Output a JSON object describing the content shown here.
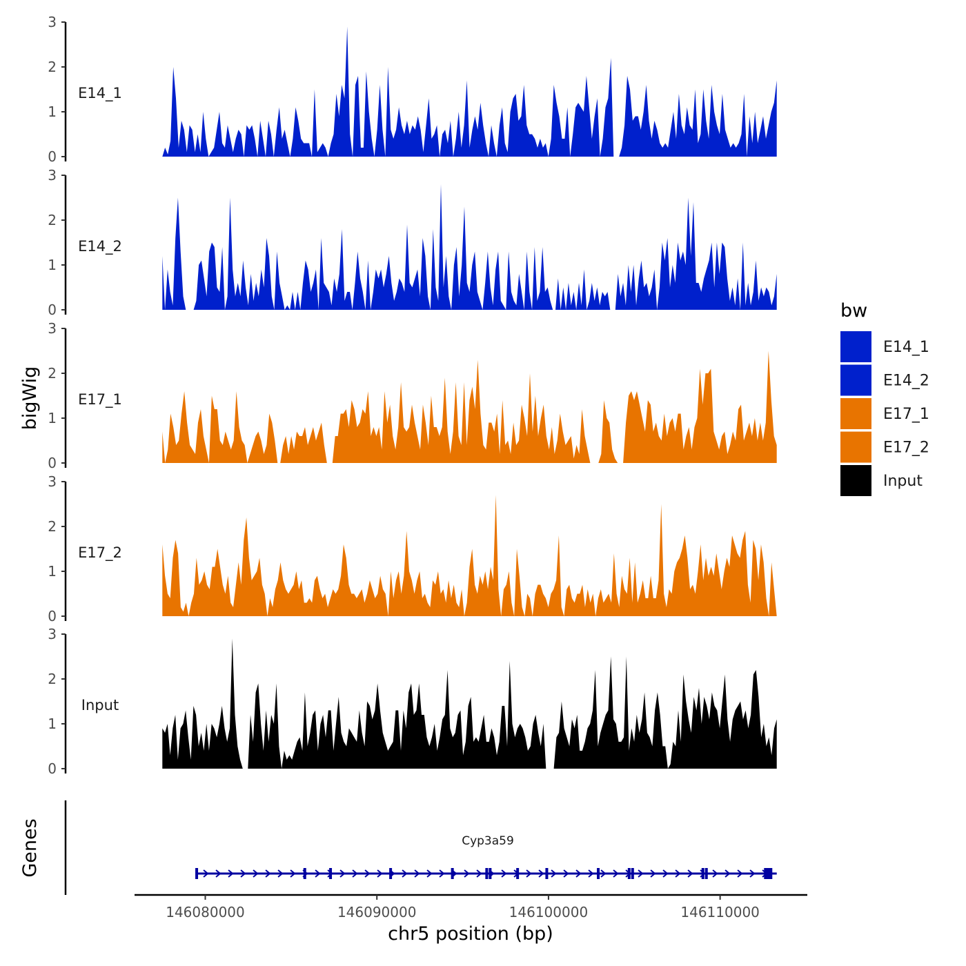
{
  "chart_data": {
    "type": "area",
    "title": "",
    "ylabel": "bigWig",
    "xlabel": "chr5 position (bp)",
    "genes_label": "Genes",
    "ylim": [
      0,
      3
    ],
    "yticks": [
      "0",
      "1",
      "2",
      "3"
    ],
    "xlim": [
      146076000,
      146115000
    ],
    "data_xrange": [
      146077500,
      146113300
    ],
    "xticks": [
      146080000,
      146090000,
      146100000,
      146110000
    ],
    "xtick_labels": [
      "146080000",
      "146090000",
      "146100000",
      "146110000"
    ],
    "legend": {
      "title": "bw",
      "placement": "right",
      "entries": [
        {
          "name": "E14_1",
          "color": "#0020CC"
        },
        {
          "name": "E14_2",
          "color": "#0020CC"
        },
        {
          "name": "E17_1",
          "color": "#E87400"
        },
        {
          "name": "E17_2",
          "color": "#E87400"
        },
        {
          "name": "Input",
          "color": "#000000"
        }
      ]
    },
    "series": [
      {
        "name": "E14_1",
        "color": "#0020CC",
        "values": [
          0.0,
          0.2,
          0.05,
          0.35,
          2.0,
          1.3,
          0.2,
          0.8,
          0.6,
          0.1,
          0.7,
          0.6,
          0.1,
          0.5,
          0.1,
          1.0,
          0.4,
          0.0,
          0.1,
          0.2,
          0.6,
          1.0,
          0.3,
          0.2,
          0.7,
          0.4,
          0.1,
          0.4,
          0.6,
          0.5,
          0.0,
          0.7,
          0.6,
          0.7,
          0.4,
          0.0,
          0.8,
          0.4,
          0.0,
          0.8,
          0.5,
          0.0,
          0.6,
          1.1,
          0.4,
          0.6,
          0.3,
          0.0,
          0.4,
          1.1,
          0.8,
          0.4,
          0.3,
          0.3,
          0.3,
          0.0,
          1.5,
          0.1,
          0.2,
          0.3,
          0.2,
          0.0,
          0.3,
          0.5,
          1.4,
          0.9,
          1.6,
          1.3,
          2.9,
          0.5,
          0.0,
          1.6,
          1.8,
          0.2,
          0.2,
          1.9,
          1.0,
          0.4,
          0.0,
          0.6,
          1.6,
          0.6,
          0.0,
          2.0,
          0.6,
          0.4,
          0.6,
          1.1,
          0.7,
          0.5,
          0.8,
          0.5,
          0.7,
          0.6,
          0.9,
          0.6,
          0.1,
          0.7,
          1.3,
          0.4,
          0.5,
          0.7,
          0.0,
          0.5,
          0.6,
          0.3,
          0.8,
          0.0,
          0.4,
          1.0,
          0.2,
          0.7,
          1.7,
          0.2,
          0.6,
          0.9,
          0.6,
          1.2,
          0.7,
          0.3,
          0.0,
          0.7,
          0.3,
          0.0,
          0.7,
          1.1,
          0.3,
          0.1,
          1.0,
          1.3,
          1.4,
          0.8,
          0.9,
          1.6,
          0.7,
          0.5,
          0.5,
          0.4,
          0.2,
          0.4,
          0.2,
          0.3,
          0.0,
          0.4,
          1.6,
          1.2,
          0.9,
          0.4,
          0.4,
          1.1,
          0.0,
          0.5,
          1.1,
          1.2,
          1.1,
          1.0,
          1.8,
          1.1,
          0.4,
          0.9,
          1.3,
          0.0,
          0.4,
          1.1,
          1.3,
          2.2,
          0.0,
          0.0,
          0.0,
          0.2,
          0.7,
          1.8,
          1.5,
          0.8,
          0.9,
          0.9,
          0.6,
          1.0,
          1.6,
          0.8,
          0.4,
          0.8,
          0.6,
          0.3,
          0.2,
          0.3,
          0.2,
          0.6,
          1.0,
          0.4,
          1.4,
          0.7,
          0.5,
          1.1,
          0.7,
          0.6,
          1.5,
          0.3,
          0.5,
          1.5,
          0.8,
          0.4,
          1.6,
          1.0,
          0.7,
          0.5,
          1.4,
          0.6,
          0.4,
          0.2,
          0.3,
          0.2,
          0.3,
          0.5,
          1.4,
          0.0,
          0.9,
          0.3,
          1.0,
          0.3,
          0.6,
          0.9,
          0.4,
          0.7,
          1.0,
          1.2,
          1.7
        ]
      },
      {
        "name": "E14_2",
        "color": "#0020CC",
        "values": [
          1.2,
          0.0,
          0.9,
          0.4,
          0.1,
          1.6,
          2.5,
          1.3,
          0.3,
          0.0,
          0.0,
          0.0,
          0.0,
          0.2,
          1.0,
          1.1,
          0.7,
          0.3,
          1.3,
          1.5,
          1.4,
          0.5,
          0.4,
          1.4,
          0.0,
          0.3,
          2.5,
          0.9,
          0.3,
          0.6,
          0.3,
          1.1,
          0.5,
          0.1,
          0.8,
          0.2,
          0.6,
          0.3,
          0.9,
          0.5,
          1.6,
          1.2,
          0.3,
          0.0,
          1.3,
          0.6,
          0.3,
          0.0,
          0.1,
          0.0,
          0.4,
          0.0,
          0.4,
          0.0,
          0.6,
          1.1,
          0.9,
          0.4,
          0.6,
          0.9,
          0.0,
          1.6,
          0.6,
          0.5,
          0.4,
          0.1,
          0.7,
          0.4,
          0.8,
          1.8,
          0.2,
          0.4,
          0.4,
          0.0,
          0.6,
          1.3,
          0.7,
          0.4,
          0.0,
          1.1,
          0.0,
          0.4,
          0.9,
          0.7,
          0.9,
          0.5,
          0.8,
          1.2,
          0.6,
          0.2,
          0.4,
          0.7,
          0.6,
          0.4,
          1.9,
          0.6,
          0.5,
          0.7,
          0.9,
          0.3,
          1.6,
          1.2,
          0.3,
          0.0,
          1.8,
          0.5,
          0.2,
          2.8,
          0.5,
          1.2,
          0.3,
          0.0,
          1.0,
          1.4,
          0.3,
          1.0,
          2.3,
          0.6,
          0.4,
          1.0,
          1.3,
          0.4,
          0.2,
          0.0,
          0.6,
          1.3,
          0.5,
          0.1,
          0.9,
          1.3,
          0.2,
          0.1,
          0.0,
          1.3,
          0.4,
          0.2,
          0.1,
          0.8,
          0.4,
          0.0,
          1.3,
          0.4,
          0.0,
          1.4,
          0.2,
          0.4,
          1.4,
          0.4,
          0.5,
          0.2,
          0.0,
          0.0,
          0.7,
          0.0,
          0.5,
          0.0,
          0.6,
          0.1,
          0.4,
          0.0,
          0.6,
          0.1,
          0.9,
          0.0,
          0.2,
          0.6,
          0.2,
          0.5,
          0.1,
          0.4,
          0.3,
          0.4,
          0.0,
          0.0,
          0.0,
          0.8,
          0.3,
          0.6,
          0.1,
          1.0,
          0.4,
          1.0,
          0.1,
          0.7,
          1.1,
          0.5,
          0.6,
          0.3,
          0.5,
          0.9,
          0.0,
          0.5,
          1.5,
          1.1,
          1.6,
          0.5,
          1.0,
          0.6,
          1.5,
          1.1,
          1.3,
          1.0,
          2.5,
          1.2,
          2.4,
          0.6,
          0.6,
          0.4,
          0.7,
          0.9,
          1.1,
          1.5,
          0.5,
          1.5,
          0.8,
          1.5,
          1.4,
          0.7,
          0.2,
          0.5,
          0.1,
          0.7,
          0.0,
          1.5,
          0.1,
          0.6,
          0.1,
          0.4,
          1.1,
          0.2,
          0.5,
          0.3,
          0.5,
          0.4,
          0.1,
          0.3,
          0.8
        ]
      },
      {
        "name": "E17_1",
        "color": "#E87400",
        "values": [
          0.7,
          0.0,
          0.3,
          1.1,
          0.8,
          0.4,
          0.5,
          1.1,
          1.6,
          0.9,
          0.4,
          0.3,
          0.2,
          0.9,
          1.2,
          0.6,
          0.3,
          0.0,
          1.5,
          1.2,
          1.2,
          0.5,
          0.4,
          0.7,
          0.5,
          0.3,
          0.5,
          1.6,
          0.8,
          0.5,
          0.4,
          0.0,
          0.2,
          0.4,
          0.6,
          0.7,
          0.5,
          0.2,
          0.4,
          1.1,
          0.9,
          0.5,
          0.0,
          0.0,
          0.4,
          0.6,
          0.2,
          0.6,
          0.3,
          0.7,
          0.6,
          0.6,
          0.8,
          0.4,
          0.6,
          0.8,
          0.5,
          0.7,
          0.9,
          0.4,
          0.0,
          0.0,
          0.0,
          0.6,
          0.6,
          1.1,
          1.1,
          1.2,
          0.8,
          1.4,
          1.2,
          0.8,
          0.9,
          1.2,
          1.1,
          1.6,
          0.6,
          0.8,
          0.6,
          0.8,
          0.3,
          1.6,
          0.9,
          1.3,
          0.6,
          0.3,
          0.8,
          1.8,
          0.8,
          0.7,
          0.8,
          1.3,
          0.9,
          0.6,
          0.3,
          1.3,
          0.9,
          0.4,
          1.5,
          0.8,
          0.8,
          0.6,
          0.8,
          1.9,
          0.7,
          0.2,
          0.7,
          1.8,
          0.6,
          0.4,
          1.8,
          0.4,
          1.4,
          1.7,
          1.2,
          2.3,
          1.1,
          0.4,
          0.3,
          0.9,
          0.9,
          0.7,
          1.1,
          0.2,
          1.4,
          0.4,
          0.5,
          0.2,
          0.9,
          0.4,
          0.5,
          1.3,
          1.0,
          0.6,
          2.0,
          0.7,
          1.5,
          0.6,
          1.0,
          1.3,
          0.6,
          0.3,
          0.8,
          0.2,
          0.5,
          1.1,
          0.7,
          0.4,
          0.5,
          0.6,
          0.1,
          0.4,
          0.2,
          1.2,
          0.6,
          0.3,
          0.0,
          0.0,
          0.0,
          0.0,
          0.2,
          1.4,
          1.0,
          0.9,
          0.3,
          0.1,
          0.0,
          0.0,
          0.0,
          0.9,
          1.5,
          1.6,
          1.4,
          1.6,
          1.3,
          1.0,
          0.7,
          1.4,
          1.3,
          0.7,
          0.9,
          0.6,
          0.5,
          1.1,
          0.6,
          0.9,
          1.0,
          0.7,
          1.1,
          1.1,
          0.3,
          0.6,
          0.8,
          0.3,
          0.8,
          1.0,
          2.1,
          1.3,
          2.0,
          2.0,
          2.1,
          0.7,
          0.5,
          0.3,
          0.6,
          0.7,
          0.2,
          0.4,
          0.7,
          0.5,
          1.2,
          1.3,
          0.5,
          0.7,
          0.9,
          0.6,
          1.0,
          0.5,
          0.9,
          0.5,
          0.9,
          2.5,
          1.4,
          0.6,
          0.4
        ]
      },
      {
        "name": "E17_2",
        "color": "#E87400",
        "values": [
          1.6,
          0.9,
          0.5,
          0.4,
          1.3,
          1.7,
          1.4,
          0.2,
          0.1,
          0.3,
          0.0,
          0.3,
          0.5,
          1.3,
          0.7,
          0.8,
          1.0,
          0.7,
          0.6,
          1.1,
          1.1,
          1.5,
          1.1,
          0.7,
          0.5,
          0.9,
          0.3,
          0.2,
          0.7,
          1.2,
          0.7,
          1.7,
          2.2,
          1.3,
          0.8,
          0.9,
          1.0,
          1.3,
          0.7,
          0.5,
          0.0,
          0.4,
          0.2,
          0.6,
          0.8,
          1.2,
          0.8,
          0.6,
          0.5,
          0.6,
          0.7,
          1.0,
          0.6,
          0.8,
          0.3,
          0.3,
          0.4,
          0.3,
          0.8,
          0.9,
          0.6,
          0.4,
          0.5,
          0.2,
          0.4,
          0.6,
          0.5,
          0.6,
          0.9,
          1.6,
          1.3,
          0.7,
          0.5,
          0.5,
          0.4,
          0.5,
          0.6,
          0.3,
          0.5,
          0.8,
          0.6,
          0.4,
          0.5,
          0.9,
          0.6,
          0.5,
          0.0,
          1.0,
          0.4,
          0.8,
          1.0,
          0.5,
          0.9,
          1.9,
          1.0,
          0.8,
          0.5,
          0.8,
          1.0,
          0.4,
          0.5,
          0.3,
          0.2,
          0.8,
          0.7,
          1.0,
          0.5,
          0.6,
          0.3,
          0.8,
          0.4,
          0.7,
          0.3,
          0.2,
          0.6,
          0.0,
          0.3,
          1.1,
          1.5,
          0.7,
          0.5,
          0.9,
          0.7,
          1.0,
          0.6,
          1.1,
          0.8,
          2.7,
          0.6,
          0.0,
          0.6,
          0.7,
          1.0,
          0.3,
          0.0,
          1.5,
          0.9,
          0.2,
          0.0,
          0.5,
          0.4,
          0.0,
          0.5,
          0.7,
          0.7,
          0.5,
          0.4,
          0.2,
          0.5,
          0.6,
          0.8,
          1.8,
          0.2,
          0.0,
          0.6,
          0.7,
          0.4,
          0.3,
          0.5,
          0.5,
          0.7,
          0.2,
          0.6,
          0.3,
          0.5,
          0.0,
          0.4,
          0.6,
          0.3,
          0.4,
          0.5,
          0.3,
          1.4,
          0.5,
          0.2,
          0.9,
          0.6,
          0.5,
          1.3,
          0.3,
          1.2,
          0.3,
          0.5,
          0.8,
          0.4,
          0.4,
          0.9,
          0.4,
          0.4,
          0.8,
          2.5,
          0.5,
          0.2,
          0.6,
          0.5,
          1.0,
          1.2,
          1.3,
          1.5,
          1.8,
          1.3,
          0.6,
          0.7,
          0.5,
          1.0,
          1.6,
          0.8,
          1.3,
          0.9,
          1.1,
          0.9,
          1.4,
          1.0,
          0.6,
          1.0,
          1.3,
          1.1,
          1.8,
          1.6,
          1.4,
          1.3,
          1.7,
          1.9,
          0.7,
          0.3,
          1.7,
          1.5,
          0.8,
          1.6,
          1.2,
          0.4,
          0.0,
          1.2,
          0.6,
          0.0
        ]
      },
      {
        "name": "Input",
        "color": "#000000",
        "values": [
          0.9,
          0.8,
          1.0,
          0.3,
          0.9,
          1.2,
          0.2,
          0.9,
          1.0,
          1.3,
          0.7,
          0.2,
          1.4,
          1.2,
          0.5,
          0.8,
          0.4,
          1.0,
          0.4,
          1.0,
          0.9,
          0.7,
          1.0,
          1.4,
          0.9,
          0.6,
          0.9,
          2.9,
          1.2,
          0.5,
          0.2,
          0.0,
          0.0,
          0.0,
          1.2,
          0.6,
          1.7,
          1.9,
          1.0,
          0.4,
          1.3,
          0.6,
          1.2,
          1.0,
          1.9,
          0.5,
          0.0,
          0.4,
          0.2,
          0.3,
          0.2,
          0.4,
          0.6,
          0.7,
          0.4,
          1.7,
          0.5,
          0.8,
          1.2,
          1.3,
          0.4,
          1.0,
          1.2,
          0.7,
          1.3,
          1.3,
          0.4,
          1.0,
          1.6,
          0.8,
          0.6,
          0.5,
          0.9,
          0.8,
          0.7,
          0.6,
          1.3,
          0.8,
          0.5,
          1.5,
          1.4,
          1.1,
          1.3,
          1.9,
          1.3,
          0.8,
          0.6,
          0.4,
          0.5,
          0.6,
          1.3,
          1.3,
          0.4,
          1.3,
          0.9,
          1.7,
          1.9,
          1.2,
          1.3,
          1.9,
          1.2,
          1.2,
          0.7,
          0.5,
          0.7,
          1.0,
          0.4,
          0.7,
          1.1,
          1.2,
          2.2,
          0.9,
          0.7,
          0.8,
          1.2,
          1.3,
          0.3,
          0.6,
          1.4,
          1.6,
          0.6,
          0.7,
          0.6,
          0.9,
          1.2,
          0.6,
          0.6,
          0.9,
          0.7,
          0.3,
          0.6,
          1.4,
          1.4,
          0.5,
          2.4,
          1.0,
          0.7,
          0.9,
          1.0,
          0.9,
          0.7,
          0.4,
          0.5,
          1.0,
          1.2,
          0.8,
          0.5,
          1.0,
          0.0,
          0.0,
          0.0,
          0.0,
          0.7,
          0.8,
          1.5,
          0.9,
          0.7,
          0.5,
          1.1,
          0.9,
          1.2,
          0.4,
          0.4,
          0.6,
          0.9,
          1.0,
          1.3,
          2.2,
          0.5,
          0.8,
          1.0,
          1.2,
          1.3,
          2.5,
          1.1,
          1.0,
          0.6,
          0.6,
          0.7,
          2.5,
          0.4,
          0.9,
          0.6,
          1.2,
          0.8,
          1.1,
          1.7,
          0.8,
          0.7,
          0.5,
          1.3,
          1.7,
          1.2,
          0.5,
          0.5,
          0.0,
          0.1,
          0.6,
          0.5,
          1.3,
          0.6,
          2.1,
          1.5,
          1.1,
          0.8,
          1.6,
          1.3,
          1.8,
          1.0,
          1.6,
          1.4,
          1.1,
          1.7,
          1.4,
          1.3,
          0.9,
          1.5,
          2.1,
          1.1,
          0.6,
          1.1,
          1.3,
          1.4,
          1.5,
          1.1,
          1.3,
          0.9,
          1.2,
          2.1,
          2.2,
          1.6,
          0.7,
          1.0,
          0.5,
          0.7,
          0.3,
          0.9,
          1.1
        ]
      }
    ],
    "gene": {
      "name": "Cyp3a59",
      "start": 146079500,
      "end": 146113300,
      "strand": "+",
      "color": "#0000A0",
      "exons": [
        146079500,
        146085800,
        146087300,
        146090800,
        146094400,
        146096400,
        146096600,
        146098200,
        146099900,
        146102900,
        146104700,
        146104900,
        146109000,
        146109200,
        146112800
      ]
    }
  }
}
